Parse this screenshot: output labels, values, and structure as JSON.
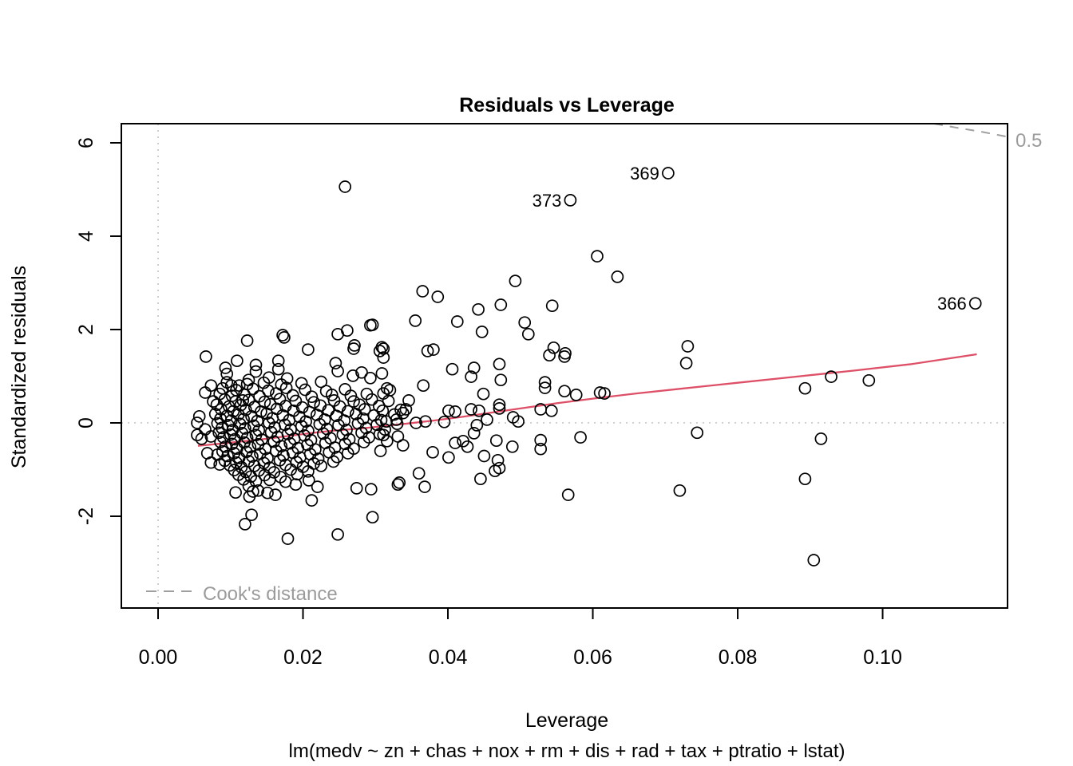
{
  "chart_data": {
    "type": "scatter",
    "title": "Residuals vs Leverage",
    "xlabel": "Leverage",
    "ylabel": "Standardized residuals",
    "subtitle": "lm(medv ~ zn + chas + nox + rm + dis + rad + tax + ptratio + lstat)",
    "xlim": [
      -0.00507,
      0.11724
    ],
    "ylim": [
      -3.966,
      6.41
    ],
    "x_ticks": {
      "values": [
        0.0,
        0.02,
        0.04,
        0.06,
        0.08,
        0.1
      ],
      "labels": [
        "0.00",
        "0.02",
        "0.04",
        "0.06",
        "0.08",
        "0.10"
      ]
    },
    "y_ticks": {
      "values": [
        -2,
        0,
        2,
        4,
        6
      ],
      "labels": [
        "-2",
        "0",
        "2",
        "4",
        "6"
      ]
    },
    "reference_lines": {
      "h": 0,
      "v": 0
    },
    "legend": {
      "label": "Cook's distance"
    },
    "cook_contour": {
      "label": "0.5",
      "points": [
        [
          0.1071,
          6.41
        ],
        [
          0.11,
          6.33
        ],
        [
          0.1135,
          6.24
        ],
        [
          0.1172,
          6.13
        ]
      ]
    },
    "labeled_points": [
      {
        "label": "369",
        "lev": 0.0704,
        "r": 5.35
      },
      {
        "label": "373",
        "lev": 0.0569,
        "r": 4.77
      },
      {
        "label": "366",
        "lev": 0.1128,
        "r": 2.56
      }
    ],
    "smooth_line": [
      [
        0.0055,
        -0.49
      ],
      [
        0.009,
        -0.44
      ],
      [
        0.012,
        -0.39
      ],
      [
        0.015,
        -0.34
      ],
      [
        0.018,
        -0.28
      ],
      [
        0.021,
        -0.22
      ],
      [
        0.024,
        -0.17
      ],
      [
        0.028,
        -0.12
      ],
      [
        0.031,
        -0.07
      ],
      [
        0.034,
        -0.02
      ],
      [
        0.038,
        0.05
      ],
      [
        0.042,
        0.13
      ],
      [
        0.046,
        0.22
      ],
      [
        0.05,
        0.31
      ],
      [
        0.055,
        0.42
      ],
      [
        0.06,
        0.52
      ],
      [
        0.066,
        0.63
      ],
      [
        0.072,
        0.73
      ],
      [
        0.08,
        0.86
      ],
      [
        0.088,
        0.99
      ],
      [
        0.096,
        1.12
      ],
      [
        0.104,
        1.26
      ],
      [
        0.113,
        1.47
      ]
    ],
    "points": [
      [
        0.0258,
        5.06
      ],
      [
        0.0606,
        3.57
      ],
      [
        0.0634,
        3.13
      ],
      [
        0.0493,
        3.04
      ],
      [
        0.0365,
        2.82
      ],
      [
        0.0386,
        2.7
      ],
      [
        0.0473,
        2.53
      ],
      [
        0.0544,
        2.51
      ],
      [
        0.0442,
        2.43
      ],
      [
        0.0355,
        2.19
      ],
      [
        0.0413,
        2.17
      ],
      [
        0.0506,
        2.15
      ],
      [
        0.0296,
        2.1
      ],
      [
        0.0293,
        2.09
      ],
      [
        0.0447,
        1.95
      ],
      [
        0.0511,
        1.9
      ],
      [
        0.0261,
        1.98
      ],
      [
        0.0248,
        1.9
      ],
      [
        0.0172,
        1.88
      ],
      [
        0.0174,
        1.83
      ],
      [
        0.0731,
        1.64
      ],
      [
        0.0729,
        1.28
      ],
      [
        0.0546,
        1.61
      ],
      [
        0.054,
        1.45
      ],
      [
        0.0562,
        1.49
      ],
      [
        0.0561,
        1.42
      ],
      [
        0.0207,
        1.57
      ],
      [
        0.027,
        1.59
      ],
      [
        0.0306,
        1.54
      ],
      [
        0.0309,
        1.62
      ],
      [
        0.0271,
        1.66
      ],
      [
        0.0245,
        1.28
      ],
      [
        0.0248,
        1.11
      ],
      [
        0.0166,
        1.33
      ],
      [
        0.0166,
        1.15
      ],
      [
        0.0153,
        0.97
      ],
      [
        0.0269,
        1.01
      ],
      [
        0.0281,
        1.08
      ],
      [
        0.0293,
        0.96
      ],
      [
        0.0309,
        1.06
      ],
      [
        0.032,
        0.7
      ],
      [
        0.0372,
        1.54
      ],
      [
        0.038,
        1.57
      ],
      [
        0.0406,
        1.15
      ],
      [
        0.0436,
        1.18
      ],
      [
        0.0432,
        0.99
      ],
      [
        0.0471,
        1.26
      ],
      [
        0.0473,
        0.92
      ],
      [
        0.0366,
        0.8
      ],
      [
        0.0534,
        0.87
      ],
      [
        0.0534,
        0.75
      ],
      [
        0.0449,
        0.62
      ],
      [
        0.0561,
        0.68
      ],
      [
        0.0577,
        0.6
      ],
      [
        0.061,
        0.65
      ],
      [
        0.0616,
        0.63
      ],
      [
        0.0528,
        0.29
      ],
      [
        0.0543,
        0.26
      ],
      [
        0.0401,
        0.26
      ],
      [
        0.041,
        0.24
      ],
      [
        0.0432,
        0.29
      ],
      [
        0.0443,
        0.26
      ],
      [
        0.0471,
        0.39
      ],
      [
        0.0471,
        0.31
      ],
      [
        0.049,
        0.12
      ],
      [
        0.0929,
        0.99
      ],
      [
        0.0981,
        0.91
      ],
      [
        0.0893,
        0.74
      ],
      [
        0.0915,
        -0.34
      ],
      [
        0.0893,
        -1.2
      ],
      [
        0.0905,
        -2.94
      ],
      [
        0.0744,
        -0.21
      ],
      [
        0.072,
        -1.45
      ],
      [
        0.0566,
        -1.54
      ],
      [
        0.0583,
        -0.31
      ],
      [
        0.0528,
        -0.37
      ],
      [
        0.0528,
        -0.56
      ],
      [
        0.0489,
        -0.51
      ],
      [
        0.0467,
        -0.38
      ],
      [
        0.0469,
        -0.8
      ],
      [
        0.0471,
        -0.97
      ],
      [
        0.0465,
        -1.03
      ],
      [
        0.045,
        -0.71
      ],
      [
        0.0445,
        -1.2
      ],
      [
        0.044,
        -0.05
      ],
      [
        0.0436,
        -0.22
      ],
      [
        0.0427,
        -0.51
      ],
      [
        0.0421,
        -0.39
      ],
      [
        0.041,
        -0.43
      ],
      [
        0.0401,
        -0.74
      ],
      [
        0.0379,
        -0.63
      ],
      [
        0.0368,
        -1.37
      ],
      [
        0.036,
        -1.08
      ],
      [
        0.0333,
        -1.28
      ],
      [
        0.0338,
        -0.48
      ],
      [
        0.0331,
        -0.29
      ],
      [
        0.0316,
        -0.39
      ],
      [
        0.0311,
        -0.26
      ],
      [
        0.0307,
        -0.6
      ],
      [
        0.0296,
        -2.02
      ],
      [
        0.0248,
        -2.39
      ],
      [
        0.0179,
        -2.48
      ],
      [
        0.012,
        -2.17
      ],
      [
        0.0129,
        -1.97
      ],
      [
        0.0107,
        -1.49
      ],
      [
        0.0138,
        -1.45
      ],
      [
        0.0151,
        -1.5
      ],
      [
        0.0162,
        -1.54
      ],
      [
        0.019,
        -1.32
      ],
      [
        0.0208,
        -1.23
      ],
      [
        0.022,
        -1.37
      ],
      [
        0.0212,
        -1.66
      ],
      [
        0.0274,
        -1.4
      ],
      [
        0.0294,
        -1.42
      ],
      [
        0.0331,
        -1.32
      ],
      [
        0.0346,
        0.48
      ],
      [
        0.0342,
        0.29
      ],
      [
        0.0338,
        0.21
      ],
      [
        0.0316,
        0.74
      ],
      [
        0.0311,
        0.63
      ],
      [
        0.0311,
        1.59
      ],
      [
        0.0311,
        1.4
      ],
      [
        0.0315,
        0.03
      ],
      [
        0.0329,
        0.07
      ],
      [
        0.0356,
        0.0
      ],
      [
        0.0369,
        0.03
      ],
      [
        0.0395,
        0.02
      ],
      [
        0.0454,
        0.07
      ],
      [
        0.0497,
        0.03
      ],
      [
        0.0066,
        1.42
      ],
      [
        0.0073,
        0.8
      ],
      [
        0.0065,
        0.65
      ],
      [
        0.0076,
        0.46
      ],
      [
        0.0057,
        0.14
      ],
      [
        0.0054,
        0.0
      ],
      [
        0.0065,
        -0.14
      ],
      [
        0.0054,
        -0.26
      ],
      [
        0.0073,
        -0.29
      ],
      [
        0.006,
        -0.34
      ],
      [
        0.0068,
        -0.65
      ],
      [
        0.0082,
        -0.68
      ],
      [
        0.0073,
        -0.85
      ],
      [
        0.0085,
        -0.89
      ],
      [
        0.0101,
        0.8
      ],
      [
        0.0112,
        0.8
      ],
      [
        0.0117,
        0.48
      ],
      [
        0.0109,
        1.33
      ],
      [
        0.0123,
        1.76
      ],
      [
        0.0095,
        1.05
      ],
      [
        0.0135,
        1.1
      ],
      [
        0.0178,
        0.95
      ],
      [
        0.0125,
        0.92
      ],
      [
        0.0093,
        1.18
      ],
      [
        0.0135,
        1.24
      ],
      [
        0.0095,
        0.87
      ],
      [
        0.0123,
        0.83
      ],
      [
        0.0146,
        0.86
      ],
      [
        0.017,
        0.82
      ],
      [
        0.0198,
        0.85
      ],
      [
        0.0225,
        0.88
      ],
      [
        0.0089,
        0.74
      ],
      [
        0.0108,
        0.7
      ],
      [
        0.0131,
        0.73
      ],
      [
        0.0152,
        0.69
      ],
      [
        0.0177,
        0.75
      ],
      [
        0.0203,
        0.71
      ],
      [
        0.0232,
        0.68
      ],
      [
        0.0258,
        0.72
      ],
      [
        0.0085,
        0.62
      ],
      [
        0.0102,
        0.58
      ],
      [
        0.0119,
        0.61
      ],
      [
        0.014,
        0.57
      ],
      [
        0.0163,
        0.63
      ],
      [
        0.0186,
        0.59
      ],
      [
        0.0212,
        0.56
      ],
      [
        0.024,
        0.6
      ],
      [
        0.0266,
        0.58
      ],
      [
        0.0288,
        0.62
      ],
      [
        0.0092,
        0.5
      ],
      [
        0.0107,
        0.46
      ],
      [
        0.0125,
        0.49
      ],
      [
        0.0147,
        0.45
      ],
      [
        0.0168,
        0.51
      ],
      [
        0.019,
        0.47
      ],
      [
        0.0215,
        0.44
      ],
      [
        0.0243,
        0.48
      ],
      [
        0.027,
        0.46
      ],
      [
        0.0295,
        0.5
      ],
      [
        0.0318,
        0.47
      ],
      [
        0.0081,
        0.39
      ],
      [
        0.0098,
        0.35
      ],
      [
        0.0114,
        0.38
      ],
      [
        0.0133,
        0.34
      ],
      [
        0.0155,
        0.4
      ],
      [
        0.0176,
        0.36
      ],
      [
        0.0199,
        0.33
      ],
      [
        0.0224,
        0.37
      ],
      [
        0.0251,
        0.35
      ],
      [
        0.0278,
        0.39
      ],
      [
        0.0305,
        0.36
      ],
      [
        0.0087,
        0.29
      ],
      [
        0.0104,
        0.25
      ],
      [
        0.0121,
        0.28
      ],
      [
        0.0142,
        0.24
      ],
      [
        0.0164,
        0.3
      ],
      [
        0.0187,
        0.26
      ],
      [
        0.0209,
        0.23
      ],
      [
        0.0235,
        0.27
      ],
      [
        0.0262,
        0.25
      ],
      [
        0.0285,
        0.29
      ],
      [
        0.031,
        0.26
      ],
      [
        0.0335,
        0.28
      ],
      [
        0.0079,
        0.19
      ],
      [
        0.0095,
        0.15
      ],
      [
        0.0111,
        0.18
      ],
      [
        0.0129,
        0.14
      ],
      [
        0.015,
        0.2
      ],
      [
        0.0172,
        0.16
      ],
      [
        0.0195,
        0.13
      ],
      [
        0.0219,
        0.17
      ],
      [
        0.0246,
        0.15
      ],
      [
        0.0273,
        0.19
      ],
      [
        0.0298,
        0.16
      ],
      [
        0.0326,
        0.18
      ],
      [
        0.0086,
        0.09
      ],
      [
        0.0101,
        0.05
      ],
      [
        0.0118,
        0.08
      ],
      [
        0.0137,
        0.04
      ],
      [
        0.0158,
        0.1
      ],
      [
        0.0181,
        0.06
      ],
      [
        0.0204,
        0.03
      ],
      [
        0.023,
        0.07
      ],
      [
        0.0257,
        0.05
      ],
      [
        0.0283,
        0.09
      ],
      [
        0.0308,
        0.06
      ],
      [
        0.0082,
        -0.01
      ],
      [
        0.0097,
        -0.05
      ],
      [
        0.0113,
        -0.02
      ],
      [
        0.0132,
        -0.06
      ],
      [
        0.0153,
        0.0
      ],
      [
        0.0175,
        -0.04
      ],
      [
        0.0198,
        -0.07
      ],
      [
        0.0223,
        -0.03
      ],
      [
        0.0249,
        -0.05
      ],
      [
        0.0276,
        -0.01
      ],
      [
        0.0302,
        -0.04
      ],
      [
        0.033,
        -0.02
      ],
      [
        0.0088,
        -0.11
      ],
      [
        0.0103,
        -0.15
      ],
      [
        0.012,
        -0.12
      ],
      [
        0.0139,
        -0.16
      ],
      [
        0.0161,
        -0.1
      ],
      [
        0.0183,
        -0.14
      ],
      [
        0.0207,
        -0.17
      ],
      [
        0.0233,
        -0.13
      ],
      [
        0.026,
        -0.15
      ],
      [
        0.0287,
        -0.11
      ],
      [
        0.0313,
        -0.14
      ],
      [
        0.0084,
        -0.21
      ],
      [
        0.01,
        -0.25
      ],
      [
        0.0116,
        -0.22
      ],
      [
        0.0135,
        -0.26
      ],
      [
        0.0156,
        -0.2
      ],
      [
        0.0179,
        -0.24
      ],
      [
        0.0202,
        -0.27
      ],
      [
        0.0228,
        -0.23
      ],
      [
        0.0255,
        -0.25
      ],
      [
        0.0281,
        -0.21
      ],
      [
        0.0306,
        -0.24
      ],
      [
        0.009,
        -0.31
      ],
      [
        0.0106,
        -0.35
      ],
      [
        0.0123,
        -0.32
      ],
      [
        0.0143,
        -0.36
      ],
      [
        0.0165,
        -0.3
      ],
      [
        0.0188,
        -0.34
      ],
      [
        0.0211,
        -0.37
      ],
      [
        0.0238,
        -0.33
      ],
      [
        0.0264,
        -0.35
      ],
      [
        0.0291,
        -0.31
      ],
      [
        0.0086,
        -0.41
      ],
      [
        0.0102,
        -0.45
      ],
      [
        0.0119,
        -0.42
      ],
      [
        0.0138,
        -0.46
      ],
      [
        0.016,
        -0.4
      ],
      [
        0.0182,
        -0.44
      ],
      [
        0.0206,
        -0.47
      ],
      [
        0.0231,
        -0.43
      ],
      [
        0.0258,
        -0.45
      ],
      [
        0.0284,
        -0.41
      ],
      [
        0.0093,
        -0.51
      ],
      [
        0.0109,
        -0.55
      ],
      [
        0.0127,
        -0.52
      ],
      [
        0.0148,
        -0.56
      ],
      [
        0.017,
        -0.5
      ],
      [
        0.0193,
        -0.54
      ],
      [
        0.0217,
        -0.57
      ],
      [
        0.0244,
        -0.53
      ],
      [
        0.027,
        -0.55
      ],
      [
        0.0089,
        -0.61
      ],
      [
        0.0105,
        -0.65
      ],
      [
        0.0122,
        -0.62
      ],
      [
        0.0141,
        -0.66
      ],
      [
        0.0163,
        -0.6
      ],
      [
        0.0186,
        -0.64
      ],
      [
        0.021,
        -0.67
      ],
      [
        0.0236,
        -0.63
      ],
      [
        0.0262,
        -0.65
      ],
      [
        0.0096,
        -0.71
      ],
      [
        0.0112,
        -0.75
      ],
      [
        0.013,
        -0.72
      ],
      [
        0.0151,
        -0.76
      ],
      [
        0.0173,
        -0.7
      ],
      [
        0.0196,
        -0.74
      ],
      [
        0.0221,
        -0.77
      ],
      [
        0.0247,
        -0.73
      ],
      [
        0.0092,
        -0.81
      ],
      [
        0.0108,
        -0.85
      ],
      [
        0.0125,
        -0.82
      ],
      [
        0.0146,
        -0.86
      ],
      [
        0.0168,
        -0.8
      ],
      [
        0.0191,
        -0.84
      ],
      [
        0.0215,
        -0.87
      ],
      [
        0.0242,
        -0.83
      ],
      [
        0.0099,
        -0.91
      ],
      [
        0.0115,
        -0.95
      ],
      [
        0.0133,
        -0.92
      ],
      [
        0.0154,
        -0.96
      ],
      [
        0.0176,
        -0.9
      ],
      [
        0.02,
        -0.94
      ],
      [
        0.0225,
        -0.92
      ],
      [
        0.0105,
        -1.01
      ],
      [
        0.0121,
        -1.05
      ],
      [
        0.0139,
        -1.02
      ],
      [
        0.016,
        -1.06
      ],
      [
        0.0183,
        -1.0
      ],
      [
        0.0207,
        -1.04
      ],
      [
        0.0111,
        -1.11
      ],
      [
        0.0128,
        -1.15
      ],
      [
        0.0147,
        -1.12
      ],
      [
        0.0169,
        -1.16
      ],
      [
        0.0192,
        -1.1
      ],
      [
        0.0118,
        -1.21
      ],
      [
        0.0135,
        -1.25
      ],
      [
        0.0154,
        -1.22
      ],
      [
        0.0176,
        -1.26
      ],
      [
        0.0125,
        -1.35
      ],
      [
        0.0131,
        -1.47
      ],
      [
        0.0126,
        -1.58
      ]
    ],
    "colors": {
      "smooth_line": "#dd5068",
      "gray_text": "#9b9b9b",
      "cook_dash": "#a0a0a0",
      "dotted_reference": "#c3c3c3",
      "points": "#000000"
    },
    "legend_position": "bottom-left",
    "grid": false
  }
}
